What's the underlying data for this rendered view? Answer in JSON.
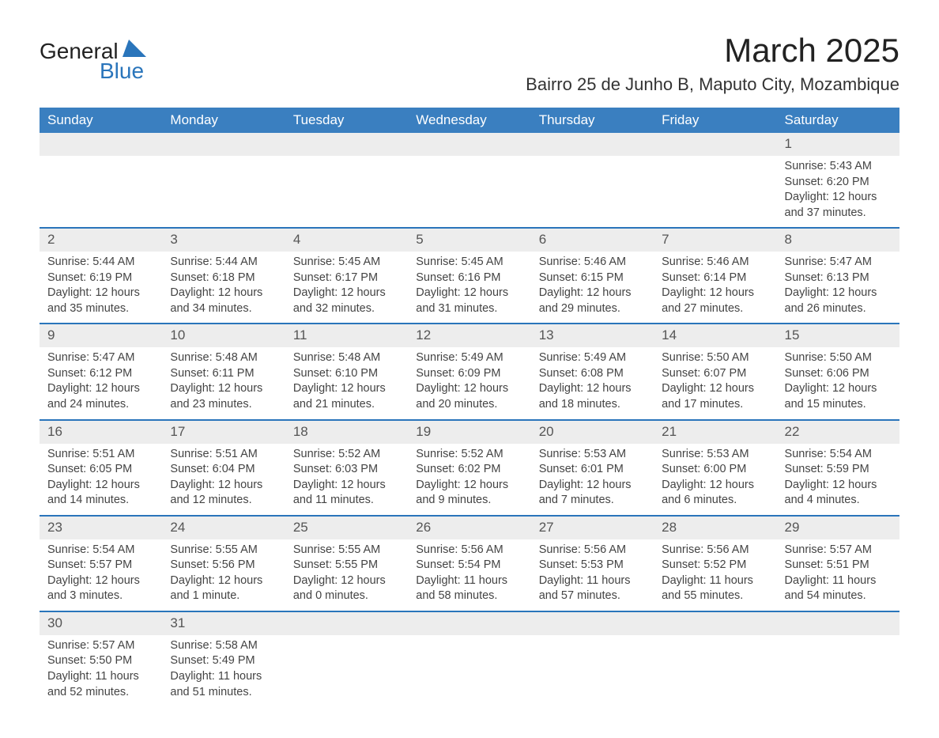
{
  "logo": {
    "general": "General",
    "blue": "Blue"
  },
  "title": "March 2025",
  "location": "Bairro 25 de Junho B, Maputo City, Mozambique",
  "colors": {
    "header_bg": "#3a7fc0",
    "header_text": "#ffffff",
    "row_divider": "#2a75bb",
    "daynum_bg": "#ededed",
    "body_text": "#444444",
    "logo_blue": "#2a75bb"
  },
  "weekdays": [
    "Sunday",
    "Monday",
    "Tuesday",
    "Wednesday",
    "Thursday",
    "Friday",
    "Saturday"
  ],
  "weeks": [
    [
      null,
      null,
      null,
      null,
      null,
      null,
      {
        "n": "1",
        "sr": "Sunrise: 5:43 AM",
        "ss": "Sunset: 6:20 PM",
        "d1": "Daylight: 12 hours",
        "d2": "and 37 minutes."
      }
    ],
    [
      {
        "n": "2",
        "sr": "Sunrise: 5:44 AM",
        "ss": "Sunset: 6:19 PM",
        "d1": "Daylight: 12 hours",
        "d2": "and 35 minutes."
      },
      {
        "n": "3",
        "sr": "Sunrise: 5:44 AM",
        "ss": "Sunset: 6:18 PM",
        "d1": "Daylight: 12 hours",
        "d2": "and 34 minutes."
      },
      {
        "n": "4",
        "sr": "Sunrise: 5:45 AM",
        "ss": "Sunset: 6:17 PM",
        "d1": "Daylight: 12 hours",
        "d2": "and 32 minutes."
      },
      {
        "n": "5",
        "sr": "Sunrise: 5:45 AM",
        "ss": "Sunset: 6:16 PM",
        "d1": "Daylight: 12 hours",
        "d2": "and 31 minutes."
      },
      {
        "n": "6",
        "sr": "Sunrise: 5:46 AM",
        "ss": "Sunset: 6:15 PM",
        "d1": "Daylight: 12 hours",
        "d2": "and 29 minutes."
      },
      {
        "n": "7",
        "sr": "Sunrise: 5:46 AM",
        "ss": "Sunset: 6:14 PM",
        "d1": "Daylight: 12 hours",
        "d2": "and 27 minutes."
      },
      {
        "n": "8",
        "sr": "Sunrise: 5:47 AM",
        "ss": "Sunset: 6:13 PM",
        "d1": "Daylight: 12 hours",
        "d2": "and 26 minutes."
      }
    ],
    [
      {
        "n": "9",
        "sr": "Sunrise: 5:47 AM",
        "ss": "Sunset: 6:12 PM",
        "d1": "Daylight: 12 hours",
        "d2": "and 24 minutes."
      },
      {
        "n": "10",
        "sr": "Sunrise: 5:48 AM",
        "ss": "Sunset: 6:11 PM",
        "d1": "Daylight: 12 hours",
        "d2": "and 23 minutes."
      },
      {
        "n": "11",
        "sr": "Sunrise: 5:48 AM",
        "ss": "Sunset: 6:10 PM",
        "d1": "Daylight: 12 hours",
        "d2": "and 21 minutes."
      },
      {
        "n": "12",
        "sr": "Sunrise: 5:49 AM",
        "ss": "Sunset: 6:09 PM",
        "d1": "Daylight: 12 hours",
        "d2": "and 20 minutes."
      },
      {
        "n": "13",
        "sr": "Sunrise: 5:49 AM",
        "ss": "Sunset: 6:08 PM",
        "d1": "Daylight: 12 hours",
        "d2": "and 18 minutes."
      },
      {
        "n": "14",
        "sr": "Sunrise: 5:50 AM",
        "ss": "Sunset: 6:07 PM",
        "d1": "Daylight: 12 hours",
        "d2": "and 17 minutes."
      },
      {
        "n": "15",
        "sr": "Sunrise: 5:50 AM",
        "ss": "Sunset: 6:06 PM",
        "d1": "Daylight: 12 hours",
        "d2": "and 15 minutes."
      }
    ],
    [
      {
        "n": "16",
        "sr": "Sunrise: 5:51 AM",
        "ss": "Sunset: 6:05 PM",
        "d1": "Daylight: 12 hours",
        "d2": "and 14 minutes."
      },
      {
        "n": "17",
        "sr": "Sunrise: 5:51 AM",
        "ss": "Sunset: 6:04 PM",
        "d1": "Daylight: 12 hours",
        "d2": "and 12 minutes."
      },
      {
        "n": "18",
        "sr": "Sunrise: 5:52 AM",
        "ss": "Sunset: 6:03 PM",
        "d1": "Daylight: 12 hours",
        "d2": "and 11 minutes."
      },
      {
        "n": "19",
        "sr": "Sunrise: 5:52 AM",
        "ss": "Sunset: 6:02 PM",
        "d1": "Daylight: 12 hours",
        "d2": "and 9 minutes."
      },
      {
        "n": "20",
        "sr": "Sunrise: 5:53 AM",
        "ss": "Sunset: 6:01 PM",
        "d1": "Daylight: 12 hours",
        "d2": "and 7 minutes."
      },
      {
        "n": "21",
        "sr": "Sunrise: 5:53 AM",
        "ss": "Sunset: 6:00 PM",
        "d1": "Daylight: 12 hours",
        "d2": "and 6 minutes."
      },
      {
        "n": "22",
        "sr": "Sunrise: 5:54 AM",
        "ss": "Sunset: 5:59 PM",
        "d1": "Daylight: 12 hours",
        "d2": "and 4 minutes."
      }
    ],
    [
      {
        "n": "23",
        "sr": "Sunrise: 5:54 AM",
        "ss": "Sunset: 5:57 PM",
        "d1": "Daylight: 12 hours",
        "d2": "and 3 minutes."
      },
      {
        "n": "24",
        "sr": "Sunrise: 5:55 AM",
        "ss": "Sunset: 5:56 PM",
        "d1": "Daylight: 12 hours",
        "d2": "and 1 minute."
      },
      {
        "n": "25",
        "sr": "Sunrise: 5:55 AM",
        "ss": "Sunset: 5:55 PM",
        "d1": "Daylight: 12 hours",
        "d2": "and 0 minutes."
      },
      {
        "n": "26",
        "sr": "Sunrise: 5:56 AM",
        "ss": "Sunset: 5:54 PM",
        "d1": "Daylight: 11 hours",
        "d2": "and 58 minutes."
      },
      {
        "n": "27",
        "sr": "Sunrise: 5:56 AM",
        "ss": "Sunset: 5:53 PM",
        "d1": "Daylight: 11 hours",
        "d2": "and 57 minutes."
      },
      {
        "n": "28",
        "sr": "Sunrise: 5:56 AM",
        "ss": "Sunset: 5:52 PM",
        "d1": "Daylight: 11 hours",
        "d2": "and 55 minutes."
      },
      {
        "n": "29",
        "sr": "Sunrise: 5:57 AM",
        "ss": "Sunset: 5:51 PM",
        "d1": "Daylight: 11 hours",
        "d2": "and 54 minutes."
      }
    ],
    [
      {
        "n": "30",
        "sr": "Sunrise: 5:57 AM",
        "ss": "Sunset: 5:50 PM",
        "d1": "Daylight: 11 hours",
        "d2": "and 52 minutes."
      },
      {
        "n": "31",
        "sr": "Sunrise: 5:58 AM",
        "ss": "Sunset: 5:49 PM",
        "d1": "Daylight: 11 hours",
        "d2": "and 51 minutes."
      },
      null,
      null,
      null,
      null,
      null
    ]
  ]
}
